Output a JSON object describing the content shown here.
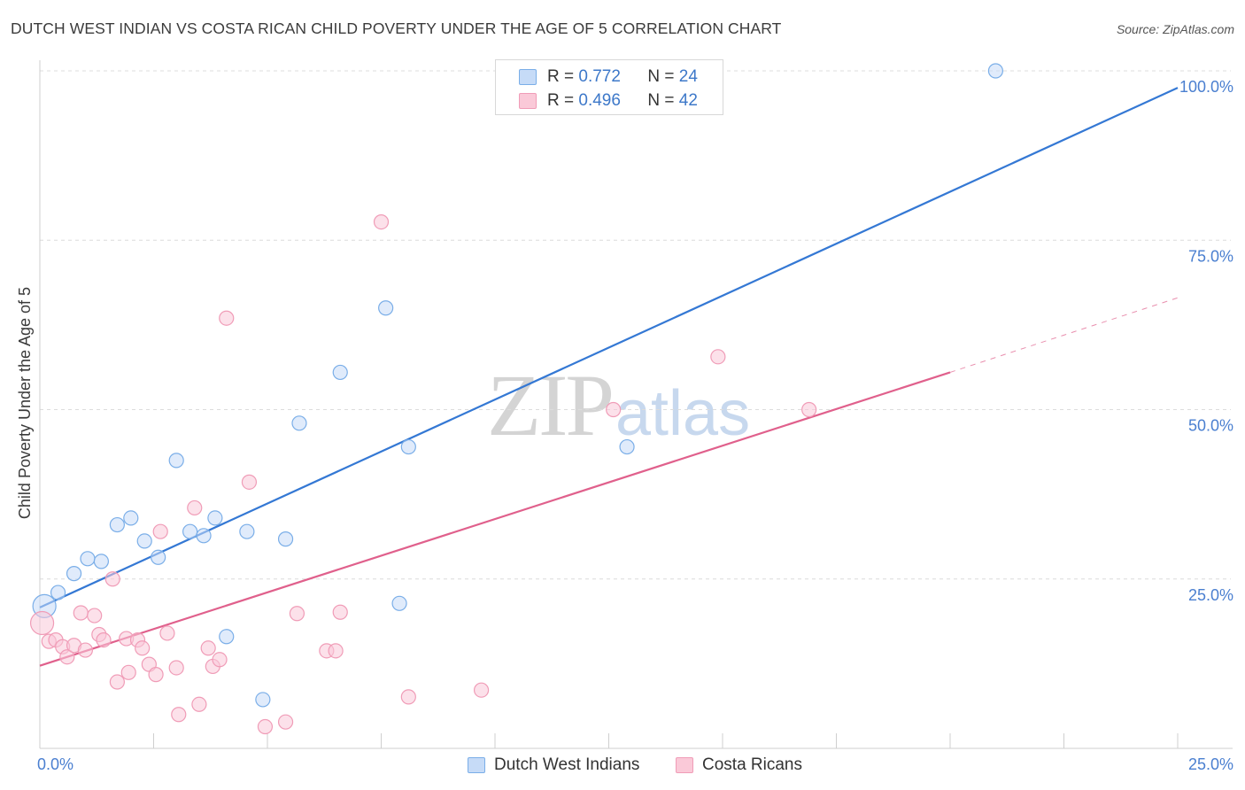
{
  "title": "DUTCH WEST INDIAN VS COSTA RICAN CHILD POVERTY UNDER THE AGE OF 5 CORRELATION CHART",
  "source": "Source: ZipAtlas.com",
  "watermark": {
    "zip": "ZIP",
    "atlas": "atlas"
  },
  "legend": {
    "r_label": "R =",
    "n_label": "N =",
    "series": [
      {
        "name": "Dutch West Indians",
        "r": "0.772",
        "n": "24"
      },
      {
        "name": "Costa Ricans",
        "r": "0.496",
        "n": "42"
      }
    ]
  },
  "chart_data": {
    "type": "scatter",
    "title": "DUTCH WEST INDIAN VS COSTA RICAN CHILD POVERTY UNDER THE AGE OF 5 CORRELATION CHART",
    "xlabel": "",
    "ylabel": "Child Poverty Under the Age of 5",
    "xlim": [
      0,
      25
    ],
    "ylim": [
      0,
      100
    ],
    "x_tick_labels": [
      {
        "value": 0,
        "label": "0.0%"
      },
      {
        "value": 25,
        "label": "25.0%"
      }
    ],
    "y_tick_labels": [
      {
        "value": 25,
        "label": "25.0%"
      },
      {
        "value": 50,
        "label": "50.0%"
      },
      {
        "value": 75,
        "label": "75.0%"
      },
      {
        "value": 100,
        "label": "100.0%"
      }
    ],
    "grid": true,
    "legend_position": "top-center",
    "series": [
      {
        "name": "Dutch West Indians",
        "color": "#7aaee8",
        "fill": "#c6dbf7",
        "line_color": "#3478d4",
        "trend": {
          "x": [
            0,
            25
          ],
          "y": [
            20.8,
            97.5
          ]
        },
        "points": [
          {
            "x": 0.1,
            "y": 21
          },
          {
            "x": 0.4,
            "y": 23
          },
          {
            "x": 0.75,
            "y": 25.8
          },
          {
            "x": 1.05,
            "y": 28
          },
          {
            "x": 1.35,
            "y": 27.6
          },
          {
            "x": 1.7,
            "y": 33
          },
          {
            "x": 2.0,
            "y": 34
          },
          {
            "x": 2.3,
            "y": 30.6
          },
          {
            "x": 2.6,
            "y": 28.2
          },
          {
            "x": 3.0,
            "y": 42.5
          },
          {
            "x": 3.3,
            "y": 32
          },
          {
            "x": 3.6,
            "y": 31.4
          },
          {
            "x": 3.85,
            "y": 34
          },
          {
            "x": 4.1,
            "y": 16.5
          },
          {
            "x": 4.55,
            "y": 32
          },
          {
            "x": 4.9,
            "y": 7.2
          },
          {
            "x": 5.4,
            "y": 30.9
          },
          {
            "x": 5.7,
            "y": 48
          },
          {
            "x": 6.6,
            "y": 55.5
          },
          {
            "x": 7.6,
            "y": 65
          },
          {
            "x": 7.9,
            "y": 21.4
          },
          {
            "x": 8.1,
            "y": 44.5
          },
          {
            "x": 12.9,
            "y": 44.5
          },
          {
            "x": 21.0,
            "y": 100
          }
        ]
      },
      {
        "name": "Costa Ricans",
        "color": "#f09cb7",
        "fill": "#fac9d8",
        "line_color": "#e0608c",
        "trend": {
          "x": [
            0,
            20
          ],
          "y": [
            12.2,
            55.5
          ]
        },
        "trend_dashed": {
          "x": [
            20,
            25
          ],
          "y": [
            55.5,
            66.5
          ]
        },
        "points": [
          {
            "x": 0.05,
            "y": 18.5
          },
          {
            "x": 0.2,
            "y": 15.8
          },
          {
            "x": 0.35,
            "y": 16
          },
          {
            "x": 0.5,
            "y": 15
          },
          {
            "x": 0.6,
            "y": 13.5
          },
          {
            "x": 0.75,
            "y": 15.2
          },
          {
            "x": 0.9,
            "y": 20
          },
          {
            "x": 1.0,
            "y": 14.5
          },
          {
            "x": 1.2,
            "y": 19.6
          },
          {
            "x": 1.3,
            "y": 16.8
          },
          {
            "x": 1.4,
            "y": 16
          },
          {
            "x": 1.6,
            "y": 25
          },
          {
            "x": 1.7,
            "y": 9.8
          },
          {
            "x": 1.9,
            "y": 16.2
          },
          {
            "x": 1.95,
            "y": 11.2
          },
          {
            "x": 2.15,
            "y": 16
          },
          {
            "x": 2.25,
            "y": 14.8
          },
          {
            "x": 2.4,
            "y": 12.4
          },
          {
            "x": 2.55,
            "y": 10.9
          },
          {
            "x": 2.65,
            "y": 32
          },
          {
            "x": 2.8,
            "y": 17
          },
          {
            "x": 3.0,
            "y": 11.9
          },
          {
            "x": 3.05,
            "y": 5
          },
          {
            "x": 3.4,
            "y": 35.5
          },
          {
            "x": 3.5,
            "y": 6.5
          },
          {
            "x": 3.7,
            "y": 14.8
          },
          {
            "x": 3.8,
            "y": 12.1
          },
          {
            "x": 3.95,
            "y": 13.1
          },
          {
            "x": 4.1,
            "y": 63.5
          },
          {
            "x": 4.6,
            "y": 39.3
          },
          {
            "x": 4.95,
            "y": 3.2
          },
          {
            "x": 5.4,
            "y": 3.9
          },
          {
            "x": 5.65,
            "y": 19.9
          },
          {
            "x": 6.3,
            "y": 14.4
          },
          {
            "x": 6.5,
            "y": 14.4
          },
          {
            "x": 6.6,
            "y": 20.1
          },
          {
            "x": 7.5,
            "y": 77.7
          },
          {
            "x": 8.1,
            "y": 7.6
          },
          {
            "x": 9.7,
            "y": 8.6
          },
          {
            "x": 12.6,
            "y": 50
          },
          {
            "x": 14.9,
            "y": 57.8
          },
          {
            "x": 16.9,
            "y": 50
          }
        ]
      }
    ]
  }
}
